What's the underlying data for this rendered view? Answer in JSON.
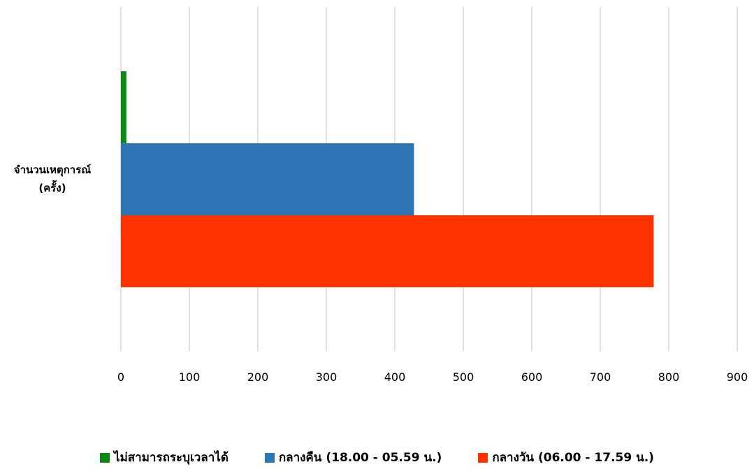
{
  "chart_data": {
    "type": "bar",
    "orientation": "horizontal",
    "categories": [
      "จำนวนเหตุการณ์ (ครั้ง)"
    ],
    "category_lines": [
      "จำนวนเหตุการณ์",
      "(ครั้ง)"
    ],
    "series": [
      {
        "name": "ไม่สามารถระบุเวลาได้",
        "values": [
          8
        ],
        "color": "#0b8a13"
      },
      {
        "name": "กลางคืน (18.00 - 05.59 น.)",
        "values": [
          428
        ],
        "color": "#2e75b6"
      },
      {
        "name": "กลางวัน (06.00 - 17.59 น.)",
        "values": [
          778
        ],
        "color": "#ff3300"
      }
    ],
    "xlim": [
      0,
      900
    ],
    "xticks": [
      "0",
      "100",
      "200",
      "300",
      "400",
      "500",
      "600",
      "700",
      "800",
      "900"
    ],
    "grid": true,
    "legend_position": "bottom"
  }
}
